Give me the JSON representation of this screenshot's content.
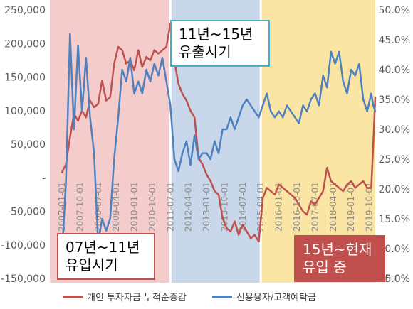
{
  "chart_data": {
    "type": "line",
    "y_left": {
      "min": -150000,
      "max": 250000,
      "tick_labels": [
        "250,000",
        "200,000",
        "150,000",
        "100,000",
        "50,000",
        "-",
        "-50,000",
        "-100,000",
        "-150,000"
      ]
    },
    "y_right": {
      "min": 0.05,
      "max": 0.5,
      "tick_labels": [
        "50.0%",
        "45.0%",
        "40.0%",
        "35.0%",
        "30.0%",
        "25.0%",
        "20.0%",
        "15.0%",
        "10.0%",
        "5.0%",
        "0.0%"
      ]
    },
    "x_tick_labels": [
      "2007-01-01",
      "2007-10-01",
      "2008-07-01",
      "2009-04-01",
      "2010-01-01",
      "2010-10-01",
      "2011-07-01",
      "2012-04-01",
      "2013-01-01",
      "2013-10-01",
      "2014-07-01",
      "2015-04-01",
      "2016-01-01",
      "2016-10-01",
      "2017-07-01",
      "2018-04-01",
      "2019-01-01",
      "2019-10-01"
    ],
    "regions": [
      {
        "label": "07년~11년\n유입시기",
        "from": "2007-01",
        "to": "2011-07",
        "color": "#f4cccc"
      },
      {
        "label": "11년~15년\n유출시기",
        "from": "2011-07",
        "to": "2015-04",
        "color": "#c9d7ea"
      },
      {
        "label": "15년~현재\n유입 중",
        "from": "2015-04",
        "to": "2020-01",
        "color": "#fbe5a5"
      }
    ],
    "series": [
      {
        "name": "개인 투자자금 누적순증감",
        "color": "#c0504d",
        "axis": "left",
        "points": [
          [
            "2007-01",
            8000
          ],
          [
            "2007-03",
            20000
          ],
          [
            "2007-05",
            60000
          ],
          [
            "2007-07",
            95000
          ],
          [
            "2007-09",
            85000
          ],
          [
            "2007-11",
            100000
          ],
          [
            "2008-01",
            90000
          ],
          [
            "2008-03",
            115000
          ],
          [
            "2008-05",
            105000
          ],
          [
            "2008-07",
            110000
          ],
          [
            "2008-09",
            145000
          ],
          [
            "2008-11",
            115000
          ],
          [
            "2009-01",
            120000
          ],
          [
            "2009-03",
            170000
          ],
          [
            "2009-05",
            195000
          ],
          [
            "2009-07",
            190000
          ],
          [
            "2009-09",
            170000
          ],
          [
            "2009-11",
            175000
          ],
          [
            "2010-01",
            160000
          ],
          [
            "2010-03",
            190000
          ],
          [
            "2010-05",
            165000
          ],
          [
            "2010-07",
            180000
          ],
          [
            "2010-09",
            175000
          ],
          [
            "2010-11",
            190000
          ],
          [
            "2011-01",
            185000
          ],
          [
            "2011-03",
            190000
          ],
          [
            "2011-05",
            195000
          ],
          [
            "2011-07",
            230000
          ],
          [
            "2011-09",
            175000
          ],
          [
            "2011-11",
            140000
          ],
          [
            "2012-01",
            125000
          ],
          [
            "2012-03",
            115000
          ],
          [
            "2012-05",
            100000
          ],
          [
            "2012-07",
            90000
          ],
          [
            "2012-09",
            30000
          ],
          [
            "2012-11",
            20000
          ],
          [
            "2013-01",
            5000
          ],
          [
            "2013-03",
            -5000
          ],
          [
            "2013-05",
            -20000
          ],
          [
            "2013-07",
            -25000
          ],
          [
            "2013-09",
            -60000
          ],
          [
            "2013-11",
            -75000
          ],
          [
            "2014-01",
            -80000
          ],
          [
            "2014-03",
            -65000
          ],
          [
            "2014-05",
            -85000
          ],
          [
            "2014-07",
            -70000
          ],
          [
            "2014-09",
            -80000
          ],
          [
            "2014-11",
            -90000
          ],
          [
            "2015-01",
            -85000
          ],
          [
            "2015-03",
            -95000
          ],
          [
            "2015-05",
            -30000
          ],
          [
            "2015-07",
            -15000
          ],
          [
            "2015-09",
            -20000
          ],
          [
            "2015-11",
            -25000
          ],
          [
            "2016-01",
            -10000
          ],
          [
            "2016-03",
            -15000
          ],
          [
            "2016-05",
            -20000
          ],
          [
            "2016-07",
            -25000
          ],
          [
            "2016-09",
            -30000
          ],
          [
            "2016-11",
            -40000
          ],
          [
            "2017-01",
            -50000
          ],
          [
            "2017-03",
            -55000
          ],
          [
            "2017-05",
            -35000
          ],
          [
            "2017-07",
            -40000
          ],
          [
            "2017-09",
            -30000
          ],
          [
            "2017-11",
            -20000
          ],
          [
            "2018-01",
            15000
          ],
          [
            "2018-03",
            -5000
          ],
          [
            "2018-05",
            -10000
          ],
          [
            "2018-07",
            -15000
          ],
          [
            "2018-09",
            -20000
          ],
          [
            "2018-11",
            -10000
          ],
          [
            "2019-01",
            -5000
          ],
          [
            "2019-03",
            -15000
          ],
          [
            "2019-05",
            -10000
          ],
          [
            "2019-07",
            -5000
          ],
          [
            "2019-09",
            -15000
          ],
          [
            "2019-11",
            -15000
          ],
          [
            "2019-12",
            50000
          ],
          [
            "2020-01",
            120000
          ]
        ]
      },
      {
        "name": "신용융자/고객예탁금",
        "color": "#4f81bd",
        "axis": "right",
        "points": [
          [
            "2007-01",
            0.09
          ],
          [
            "2007-03",
            0.21
          ],
          [
            "2007-05",
            0.46
          ],
          [
            "2007-07",
            0.3
          ],
          [
            "2007-09",
            0.44
          ],
          [
            "2007-11",
            0.33
          ],
          [
            "2008-01",
            0.42
          ],
          [
            "2008-03",
            0.32
          ],
          [
            "2008-05",
            0.26
          ],
          [
            "2008-07",
            0.11
          ],
          [
            "2008-09",
            0.15
          ],
          [
            "2008-11",
            0.13
          ],
          [
            "2009-01",
            0.15
          ],
          [
            "2009-03",
            0.25
          ],
          [
            "2009-05",
            0.32
          ],
          [
            "2009-07",
            0.4
          ],
          [
            "2009-09",
            0.38
          ],
          [
            "2009-11",
            0.42
          ],
          [
            "2010-01",
            0.36
          ],
          [
            "2010-03",
            0.38
          ],
          [
            "2010-05",
            0.36
          ],
          [
            "2010-07",
            0.4
          ],
          [
            "2010-09",
            0.38
          ],
          [
            "2010-11",
            0.41
          ],
          [
            "2011-01",
            0.39
          ],
          [
            "2011-03",
            0.42
          ],
          [
            "2011-05",
            0.38
          ],
          [
            "2011-07",
            0.34
          ],
          [
            "2011-09",
            0.25
          ],
          [
            "2011-11",
            0.23
          ],
          [
            "2012-01",
            0.26
          ],
          [
            "2012-03",
            0.28
          ],
          [
            "2012-05",
            0.24
          ],
          [
            "2012-07",
            0.29
          ],
          [
            "2012-09",
            0.25
          ],
          [
            "2012-11",
            0.26
          ],
          [
            "2013-01",
            0.26
          ],
          [
            "2013-03",
            0.25
          ],
          [
            "2013-05",
            0.28
          ],
          [
            "2013-07",
            0.26
          ],
          [
            "2013-09",
            0.3
          ],
          [
            "2013-11",
            0.3
          ],
          [
            "2014-01",
            0.32
          ],
          [
            "2014-03",
            0.3
          ],
          [
            "2014-05",
            0.32
          ],
          [
            "2014-07",
            0.34
          ],
          [
            "2014-09",
            0.35
          ],
          [
            "2014-11",
            0.34
          ],
          [
            "2015-01",
            0.33
          ],
          [
            "2015-03",
            0.32
          ],
          [
            "2015-05",
            0.34
          ],
          [
            "2015-07",
            0.36
          ],
          [
            "2015-09",
            0.33
          ],
          [
            "2015-11",
            0.32
          ],
          [
            "2016-01",
            0.33
          ],
          [
            "2016-03",
            0.32
          ],
          [
            "2016-05",
            0.34
          ],
          [
            "2016-07",
            0.33
          ],
          [
            "2016-09",
            0.32
          ],
          [
            "2016-11",
            0.31
          ],
          [
            "2017-01",
            0.34
          ],
          [
            "2017-03",
            0.33
          ],
          [
            "2017-05",
            0.35
          ],
          [
            "2017-07",
            0.36
          ],
          [
            "2017-09",
            0.34
          ],
          [
            "2017-11",
            0.39
          ],
          [
            "2018-01",
            0.37
          ],
          [
            "2018-03",
            0.43
          ],
          [
            "2018-05",
            0.41
          ],
          [
            "2018-07",
            0.43
          ],
          [
            "2018-09",
            0.38
          ],
          [
            "2018-11",
            0.36
          ],
          [
            "2019-01",
            0.4
          ],
          [
            "2019-03",
            0.39
          ],
          [
            "2019-05",
            0.41
          ],
          [
            "2019-07",
            0.35
          ],
          [
            "2019-09",
            0.33
          ],
          [
            "2019-11",
            0.36
          ],
          [
            "2019-12",
            0.34
          ],
          [
            "2020-01",
            0.33
          ]
        ]
      }
    ]
  }
}
